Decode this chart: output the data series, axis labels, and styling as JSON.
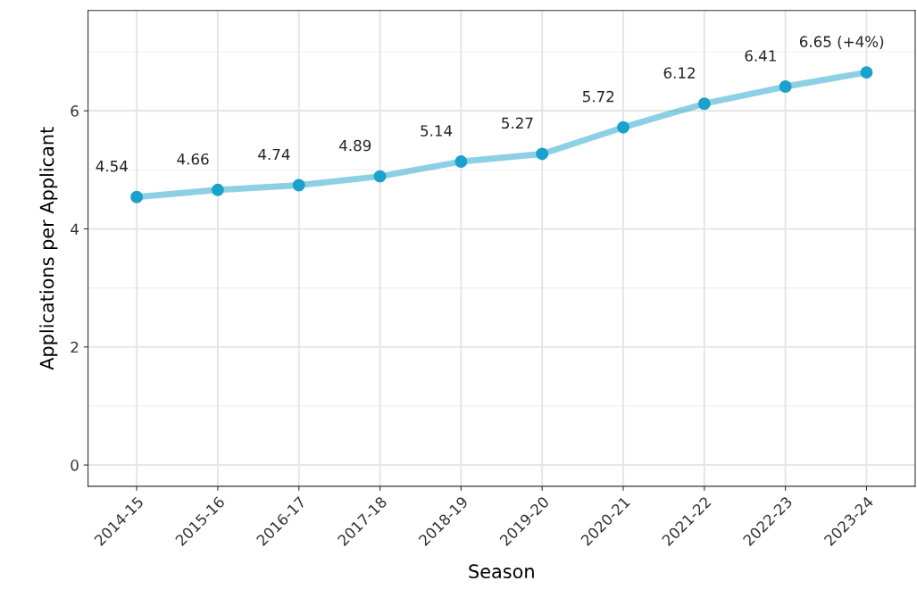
{
  "chart_data": {
    "type": "line",
    "xlabel": "Season",
    "ylabel": "Applications per Applicant",
    "categories": [
      "2014-15",
      "2015-16",
      "2016-17",
      "2017-18",
      "2018-19",
      "2019-20",
      "2020-21",
      "2021-22",
      "2022-23",
      "2023-24"
    ],
    "series": [
      {
        "color": "#1ba1cc",
        "values": [
          4.54,
          4.66,
          4.74,
          4.89,
          5.14,
          5.27,
          5.72,
          6.12,
          6.41,
          6.65
        ],
        "value_labels": [
          "4.54",
          "4.66",
          "4.74",
          "4.89",
          "5.14",
          "5.27",
          "5.72",
          "6.12",
          "6.41",
          "6.65 (+4%)"
        ]
      }
    ],
    "ylim": [
      -0.36,
      7.7
    ],
    "yticks": [
      0,
      2,
      4,
      6
    ],
    "grid": true,
    "marker": "circle",
    "line_style": "solid"
  }
}
